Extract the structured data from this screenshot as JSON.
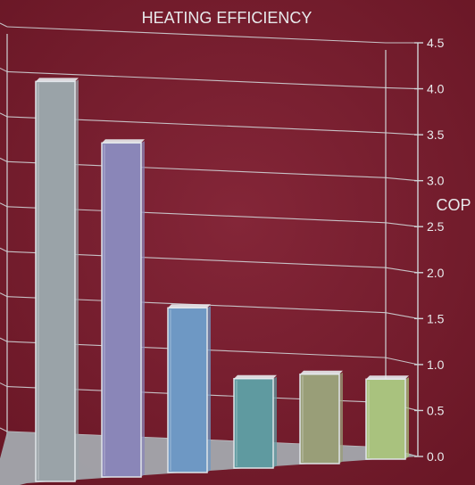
{
  "chart_data": {
    "type": "bar",
    "title": "HEATING EFFICIENCY",
    "ylabel": "COP",
    "xlabel": "",
    "ylim": [
      0,
      4.5
    ],
    "yticks": [
      "0.0",
      "0.5",
      "1.0",
      "1.5",
      "2.0",
      "2.5",
      "3.0",
      "3.5",
      "4.0",
      "4.5"
    ],
    "axis_side": "right",
    "grid": true,
    "style": "3d-perspective",
    "values": [
      4.25,
      3.55,
      1.75,
      0.95,
      0.95,
      0.85
    ],
    "colors": [
      "#9aa3a8",
      "#8a86b8",
      "#6e98c4",
      "#5f9aa0",
      "#999e78",
      "#a9c27e"
    ]
  },
  "colors": {
    "background": "#7a1e2e",
    "grid": "#cfd3d6",
    "text": "#e8eaec",
    "floor": "#a3a8ad"
  }
}
